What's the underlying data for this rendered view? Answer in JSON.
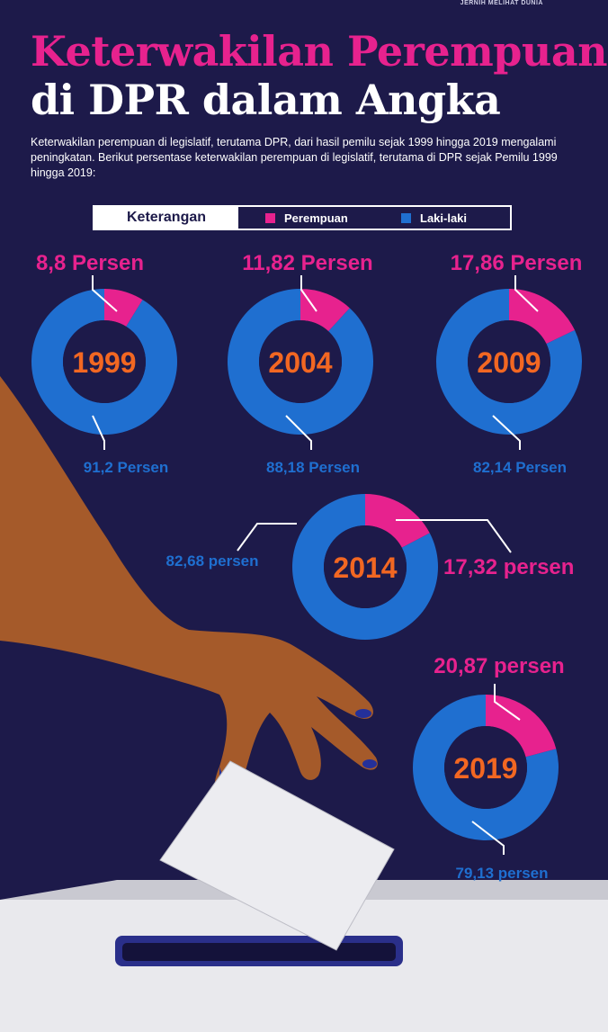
{
  "header": {
    "brand": "JERNIH MELIHAT DUNIA",
    "title_line1": "Keterwakilan Perempuan",
    "title_line2": "di DPR dalam Angka",
    "intro": "Keterwakilan perempuan di legislatif, terutama DPR, dari hasil pemilu sejak 1999 hingga 2019 mengalami peningkatan. Berikut persentase keterwakilan perempuan di legislatif, terutama di DPR sejak Pemilu 1999 hingga 2019:"
  },
  "legend": {
    "title": "Keterangan",
    "items": [
      {
        "label": "Perempuan",
        "color": "#e7228e"
      },
      {
        "label": "Laki-laki",
        "color": "#1f6fd0"
      }
    ]
  },
  "colors": {
    "women": "#e7228e",
    "men": "#1f6fd0",
    "year_text": "#f26722",
    "background": "#1d1a4a"
  },
  "chart_data": {
    "type": "pie",
    "variant": "donut",
    "title": "Keterwakilan Perempuan di DPR dalam Angka",
    "series": [
      {
        "name": "Perempuan",
        "values": [
          8.8,
          11.82,
          17.86,
          17.32,
          20.87
        ]
      },
      {
        "name": "Laki-laki",
        "values": [
          91.2,
          88.18,
          82.14,
          82.68,
          79.13
        ]
      }
    ],
    "charts": [
      {
        "year": "1999",
        "women_pct": 8.8,
        "men_pct": 91.2,
        "women_label": "8,8 Persen",
        "men_label": "91,2 Persen"
      },
      {
        "year": "2004",
        "women_pct": 11.82,
        "men_pct": 88.18,
        "women_label": "11,82 Persen",
        "men_label": "88,18 Persen"
      },
      {
        "year": "2009",
        "women_pct": 17.86,
        "men_pct": 82.14,
        "women_label": "17,86 Persen",
        "men_label": "82,14 Persen"
      },
      {
        "year": "2014",
        "women_pct": 17.32,
        "men_pct": 82.68,
        "women_label": "17,32 persen",
        "men_label": "82,68 persen"
      },
      {
        "year": "2019",
        "women_pct": 20.87,
        "men_pct": 79.13,
        "women_label": "20,87 persen",
        "men_label": "79,13 persen"
      }
    ]
  }
}
